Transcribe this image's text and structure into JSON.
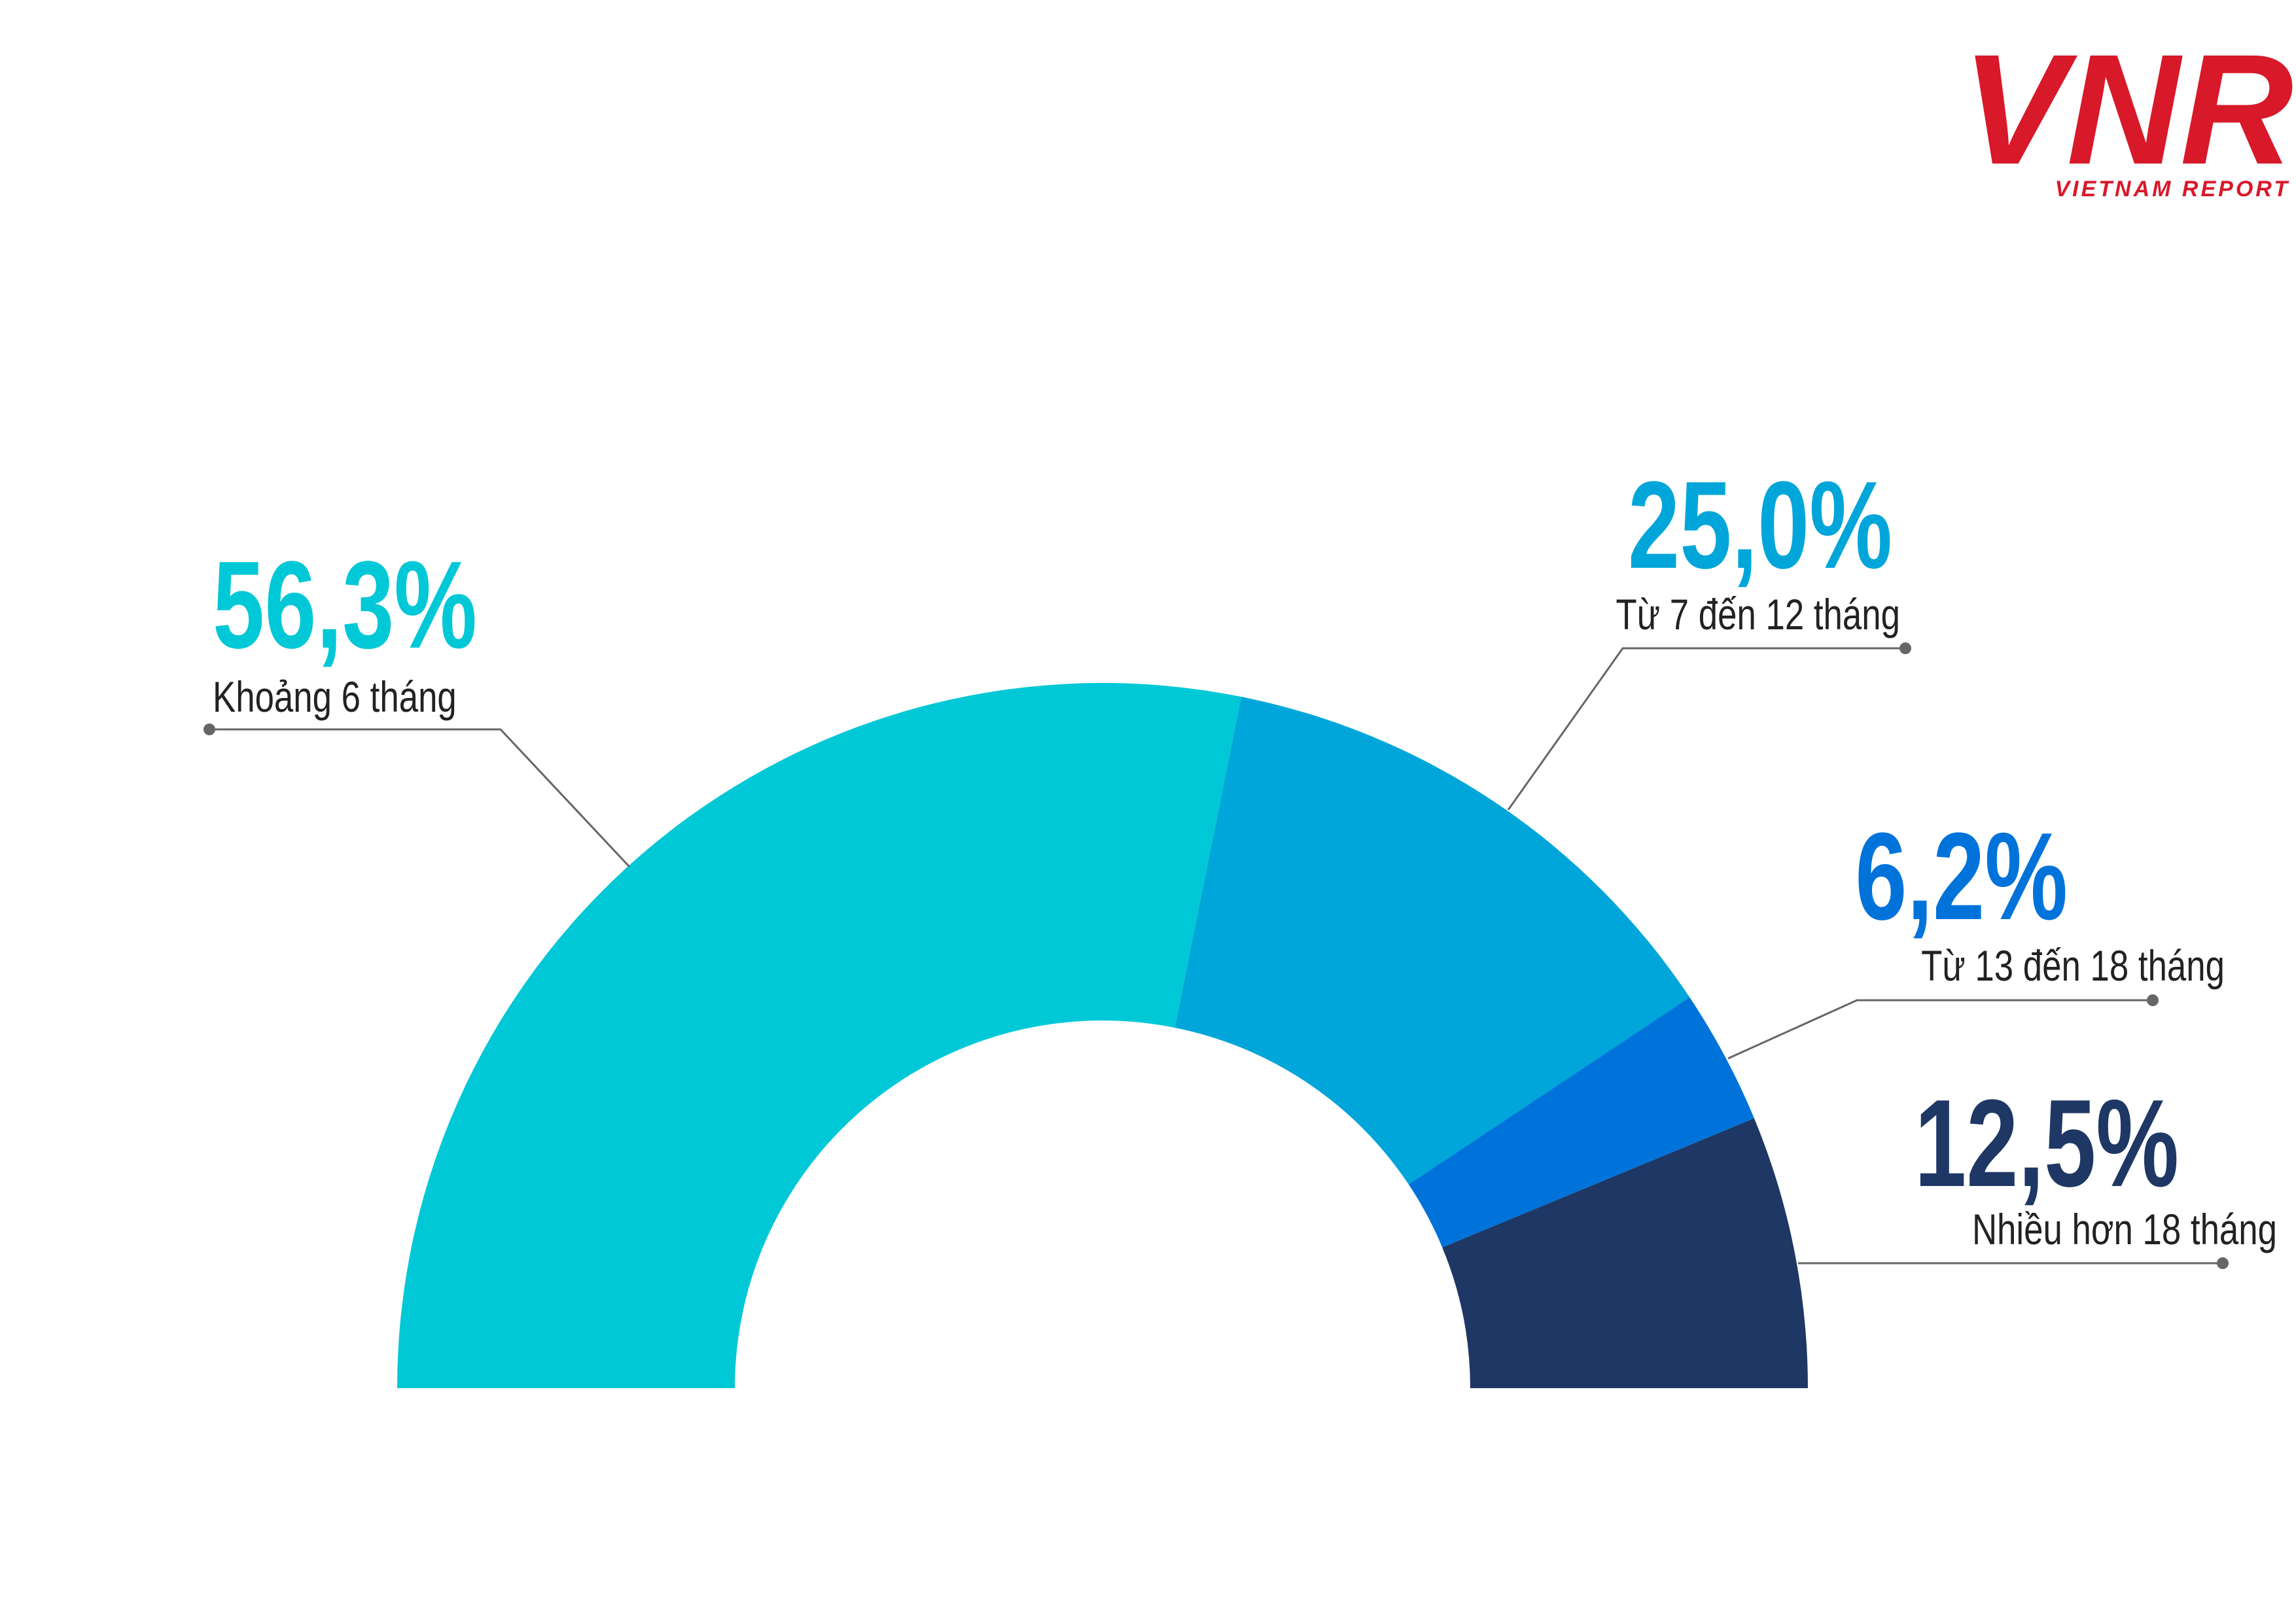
{
  "logo": {
    "mark": "VNR",
    "text": "VIETNAM REPORT"
  },
  "chart_data": {
    "type": "half-donut",
    "categories": [
      "Khoảng 6 tháng",
      "Từ 7 đến 12 tháng",
      "Từ 13 đến 18 tháng",
      "Nhiều hơn 18 tháng"
    ],
    "values": [
      56.3,
      25.0,
      6.2,
      12.5
    ],
    "value_labels": [
      "56,3%",
      "25,0%",
      "6,2%",
      "12,5%"
    ],
    "colors": [
      "#00c8d7",
      "#00a6d9",
      "#0073da",
      "#1e3764"
    ]
  }
}
